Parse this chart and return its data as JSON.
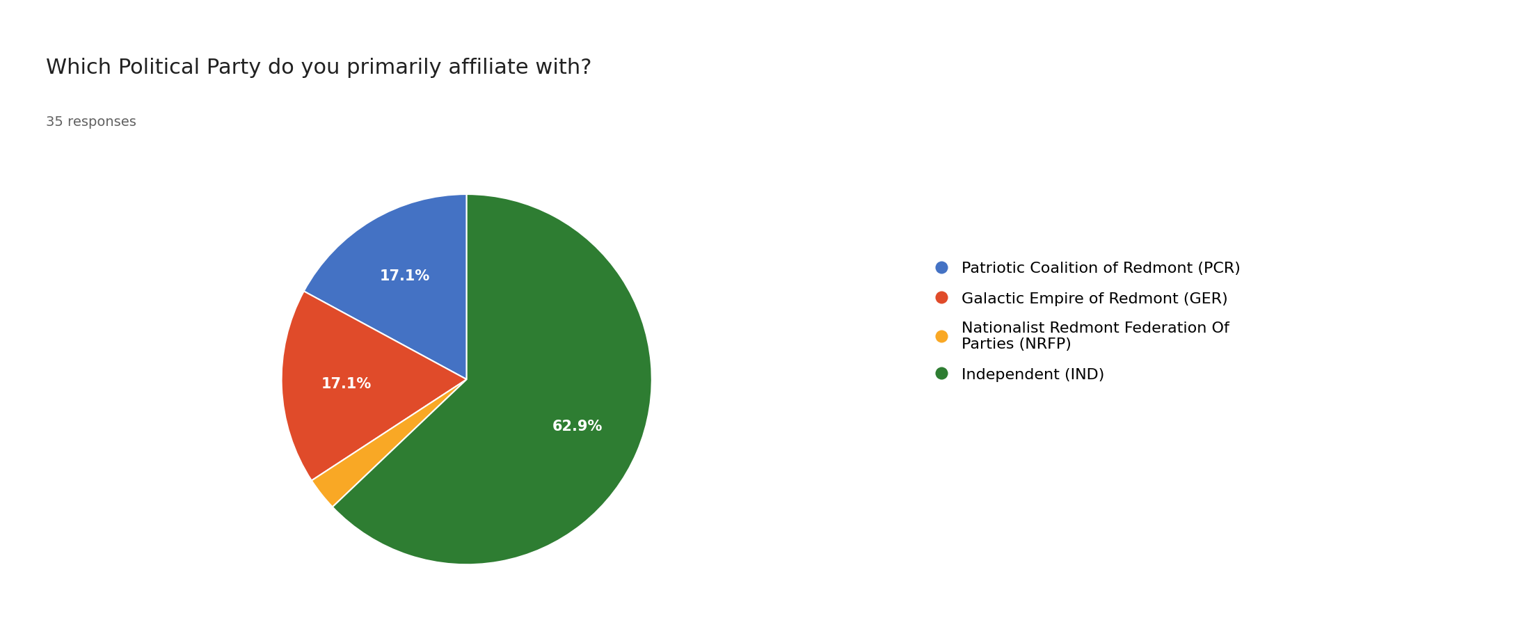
{
  "title": "Which Political Party do you primarily affiliate with?",
  "subtitle": "35 responses",
  "legend_labels": [
    "Patriotic Coalition of Redmont (PCR)",
    "Galactic Empire of Redmont (GER)",
    "Nationalist Redmont Federation Of\nParties (NRFP)",
    "Independent (IND)"
  ],
  "values": [
    17.1,
    17.1,
    2.9,
    62.9
  ],
  "colors": [
    "#4472c4",
    "#e04b2a",
    "#f9a825",
    "#2e7d32"
  ],
  "background_color": "#ffffff",
  "title_fontsize": 22,
  "subtitle_fontsize": 14,
  "label_fontsize": 15,
  "legend_fontsize": 16,
  "startangle": 90
}
